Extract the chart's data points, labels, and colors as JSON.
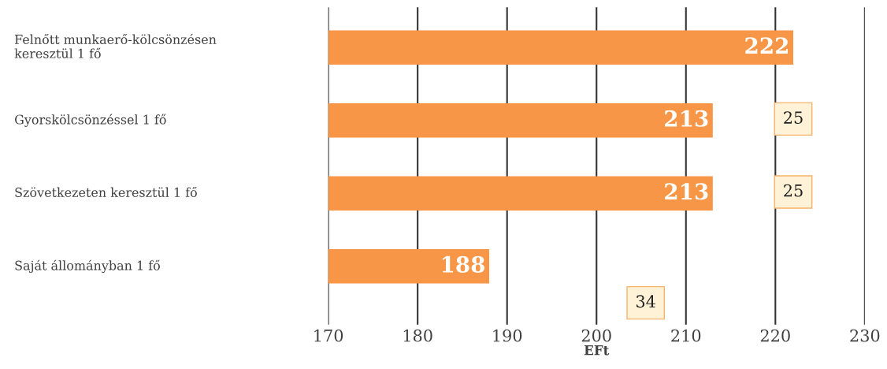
{
  "chart_data": {
    "type": "bar",
    "orientation": "horizontal",
    "categories": [
      "Felnőtt munkaerő-kölcsönzésen\nkeresztül 1 fő",
      "Gyorskölcsönzéssel 1 fő",
      "Szövetkezeten keresztül 1 fő",
      "Saját állományban 1 fő"
    ],
    "values": [
      222,
      213,
      213,
      188
    ],
    "color": "#f79646",
    "xlim": [
      170,
      230
    ],
    "xticks": [
      170,
      180,
      190,
      200,
      210,
      220,
      230
    ],
    "xlabel": "EFt",
    "grid": "x",
    "data_labels": true,
    "legend": false,
    "annotations": [
      "25",
      "25",
      "34"
    ]
  }
}
